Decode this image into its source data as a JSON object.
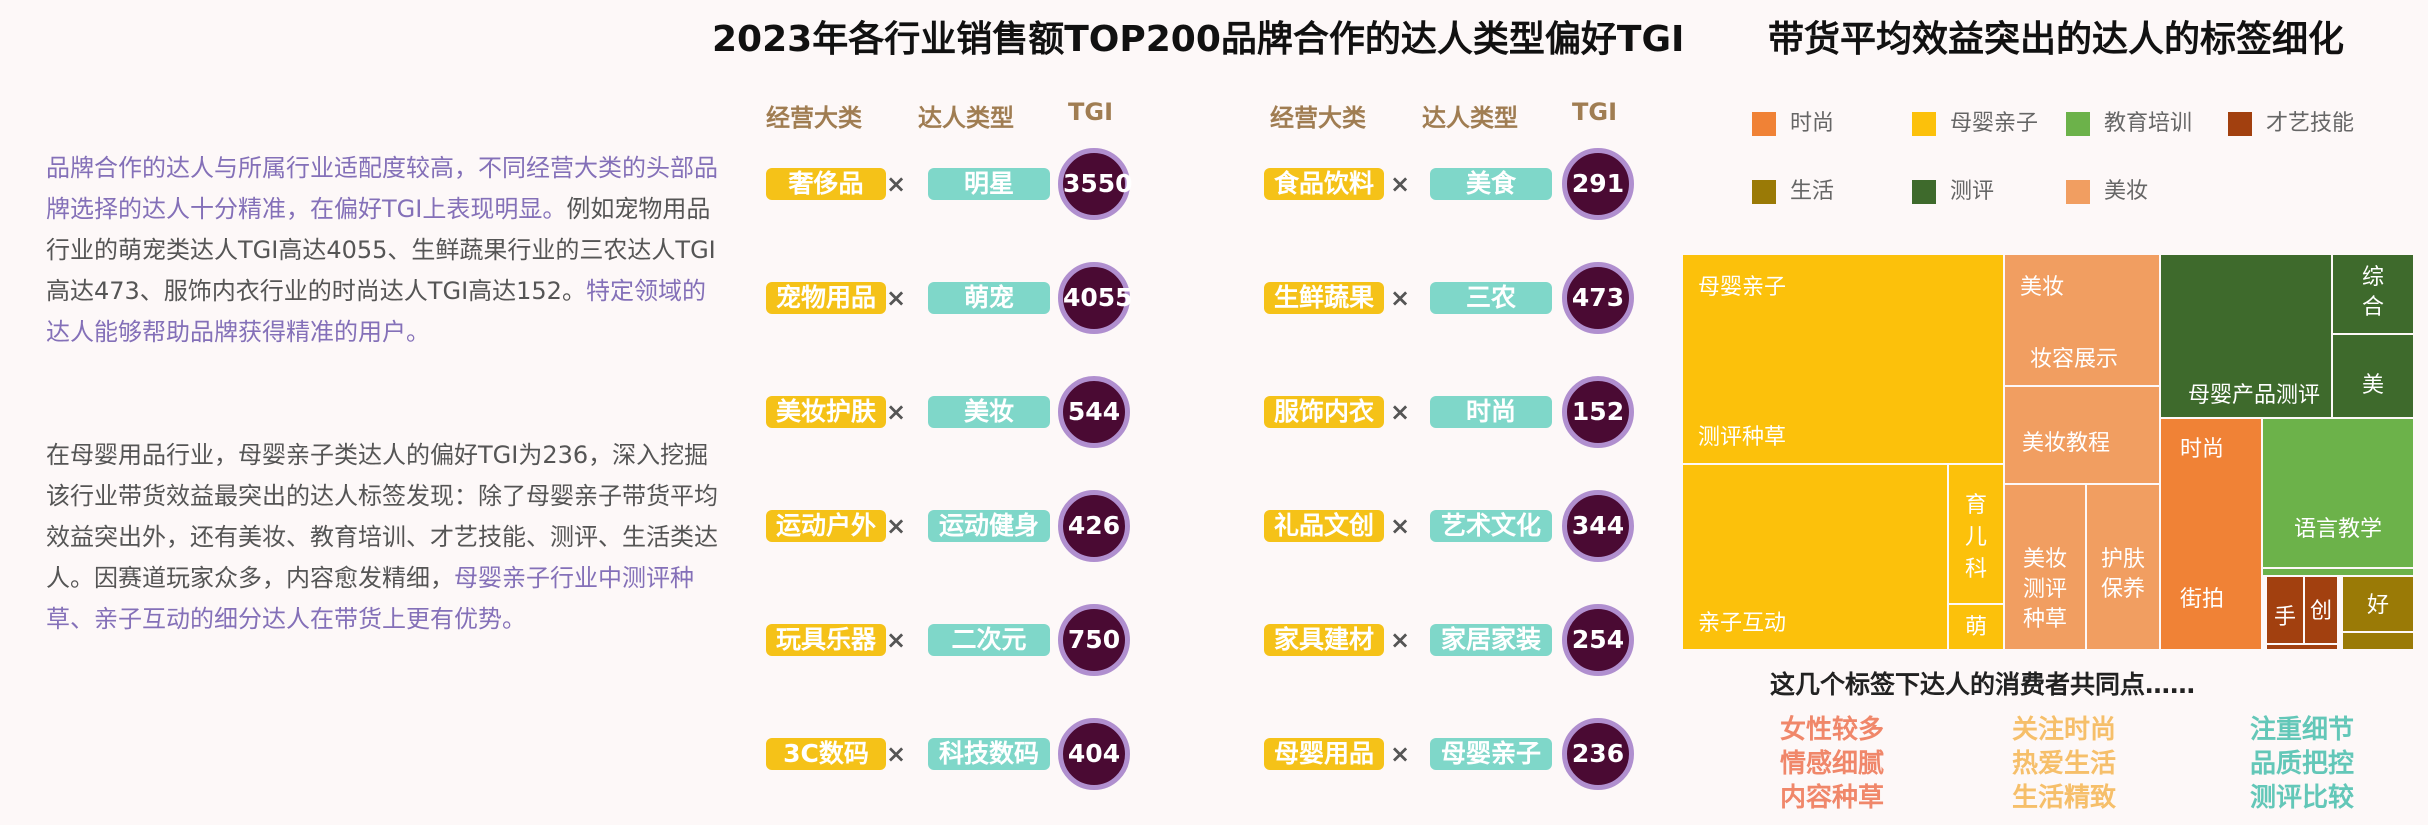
{
  "titles": {
    "main": "2023年各行业销售额TOP200品牌合作的达人类型偏好TGI",
    "right": "带货平均效益突出的达人的标签细化"
  },
  "left_text": {
    "p1_a": "品牌合作的达人与所属行业适配度较高，不同经营大类的头部品牌选择的达人十分精准，在偏好TGI上表现明显。",
    "p1_b": "例如宠物用品行业的萌宠类达人TGI高达4055、生鲜蔬果行业的三农达人TGI高达473、服饰内衣行业的时尚达人TGI高达152。",
    "p1_c": "特定领域的达人能够帮助品牌获得精准的用户。",
    "p2_a": "在母婴用品行业，母婴亲子类达人的偏好TGI为236，深入挖掘该行业带货效益最突出的达人标签发现：除了母婴亲子带货平均效益突出外，还有美妆、教育培训、才艺技能、测评、生活类达人。因赛道玩家众多，内容愈发精细，",
    "p2_b": "母婴亲子行业中测评种草、亲子互动的细分达人在带货上更有优势。"
  },
  "table_headers": {
    "category": "经营大类",
    "type": "达人类型",
    "tgi": "TGI"
  },
  "times_symbol": "×",
  "chart_data": [
    {
      "type": "table",
      "title": "2023年各行业销售额TOP200品牌合作的达人类型偏好TGI",
      "columns": [
        "经营大类",
        "达人类型",
        "TGI"
      ],
      "rows": [
        {
          "category": "奢侈品",
          "type": "明星",
          "tgi": 3550
        },
        {
          "category": "宠物用品",
          "type": "萌宠",
          "tgi": 4055
        },
        {
          "category": "美妆护肤",
          "type": "美妆",
          "tgi": 544
        },
        {
          "category": "运动户外",
          "type": "运动健身",
          "tgi": 426
        },
        {
          "category": "玩具乐器",
          "type": "二次元",
          "tgi": 750
        },
        {
          "category": "3C数码",
          "type": "科技数码",
          "tgi": 404
        },
        {
          "category": "食品饮料",
          "type": "美食",
          "tgi": 291
        },
        {
          "category": "生鲜蔬果",
          "type": "三农",
          "tgi": 473
        },
        {
          "category": "服饰内衣",
          "type": "时尚",
          "tgi": 152
        },
        {
          "category": "礼品文创",
          "type": "艺术文化",
          "tgi": 344
        },
        {
          "category": "家具建材",
          "type": "家居家装",
          "tgi": 254
        },
        {
          "category": "母婴用品",
          "type": "母婴亲子",
          "tgi": 236
        }
      ]
    },
    {
      "type": "treemap",
      "title": "带货平均效益突出的达人的标签细化",
      "legend": [
        {
          "name": "时尚",
          "color": "#f08236"
        },
        {
          "name": "母婴亲子",
          "color": "#fcc10b"
        },
        {
          "name": "教育培训",
          "color": "#6cb24a"
        },
        {
          "name": "才艺技能",
          "color": "#a2400f"
        },
        {
          "name": "生活",
          "color": "#9a7a06"
        },
        {
          "name": "测评",
          "color": "#3e6a2c"
        },
        {
          "name": "美妆",
          "color": "#f19e61"
        }
      ],
      "cells": [
        {
          "label": "母婴亲子",
          "group": "母婴亲子"
        },
        {
          "label": "测评种草",
          "group": "母婴亲子"
        },
        {
          "label": "亲子互动",
          "group": "母婴亲子"
        },
        {
          "label": "育儿科",
          "group": "母婴亲子"
        },
        {
          "label": "萌",
          "group": "母婴亲子"
        },
        {
          "label": "美妆",
          "group": "美妆"
        },
        {
          "label": "妆容展示",
          "group": "美妆"
        },
        {
          "label": "美妆教程",
          "group": "美妆"
        },
        {
          "label": "美妆测评种草",
          "group": "美妆"
        },
        {
          "label": "护肤保养",
          "group": "美妆"
        },
        {
          "label": "母婴产品测评",
          "group": "测评"
        },
        {
          "label": "综合",
          "group": "测评"
        },
        {
          "label": "美",
          "group": "测评"
        },
        {
          "label": "时尚",
          "group": "时尚"
        },
        {
          "label": "街拍",
          "group": "时尚"
        },
        {
          "label": "语言教学",
          "group": "教育培训"
        },
        {
          "label": "手",
          "group": "才艺技能"
        },
        {
          "label": "创",
          "group": "才艺技能"
        },
        {
          "label": "好",
          "group": "生活"
        }
      ]
    }
  ],
  "commons": {
    "title": "这几个标签下达人的消费者共同点……",
    "groups": [
      {
        "color": "#f0876a",
        "lines": [
          "女性较多",
          "情感细腻",
          "内容种草"
        ]
      },
      {
        "color": "#f6bf6a",
        "lines": [
          "关注时尚",
          "热爱生活",
          "生活精致"
        ]
      },
      {
        "color": "#63c7b8",
        "lines": [
          "注重细节",
          "品质把控",
          "测评比较"
        ]
      }
    ]
  }
}
